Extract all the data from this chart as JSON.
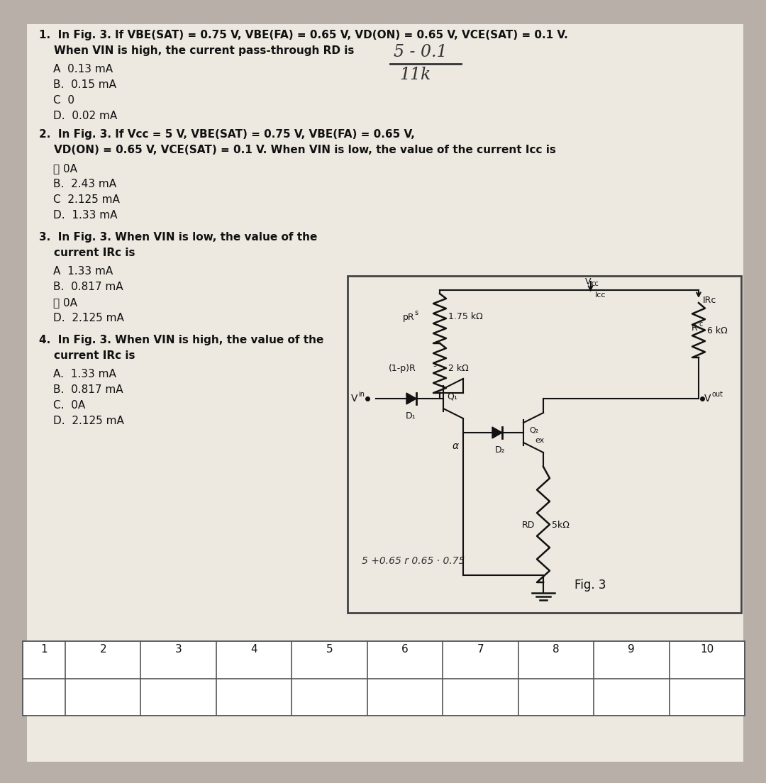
{
  "bg_color": "#b8b0a8",
  "paper_color": "#ede8e0",
  "q1_line1": "1.  In Fig. 3. If VBE(SAT) = 0.75 V, VBE(FA) = 0.65 V, VD(ON) = 0.65 V, VCE(SAT) = 0.1 V.",
  "q1_line2": "    When VIN is high, the current pass-through RD is",
  "q1_choices": [
    "A  0.13 mA",
    "B.  0.15 mA",
    "C  0",
    "D.  0.02 mA"
  ],
  "hw_numerator": "5 - 0.1",
  "hw_denominator": "11k",
  "q2_line1": "2.  In Fig. 3. If Vcc = 5 V, VBE(SAT) = 0.75 V, VBE(FA) = 0.65 V,",
  "q2_line2": "    VD(ON) = 0.65 V, VCE(SAT) = 0.1 V. When VIN is low, the value of the current Icc is",
  "q2_choices": [
    "Ⓐ 0A",
    "B.  2.43 mA",
    "C  2.125 mA",
    "D.  1.33 mA"
  ],
  "q3_line1": "3.  In Fig. 3. When VIN is low, the value of the",
  "q3_line2": "    current IRc is",
  "q3_choices": [
    "A  1.33 mA",
    "B.  0.817 mA",
    "Ⓐ 0A",
    "D.  2.125 mA"
  ],
  "q4_line1": "4.  In Fig. 3. When VIN is high, the value of the",
  "q4_line2": "    current IRc is",
  "q4_choices": [
    "A.  1.33 mA",
    "B.  0.817 mA",
    "C.  0A",
    "D.  2.125 mA"
  ],
  "fig_label": "Fig. 3",
  "table_cols": [
    "1",
    "2",
    "3",
    "4",
    "5",
    "6",
    "7",
    "8",
    "9",
    "10"
  ]
}
